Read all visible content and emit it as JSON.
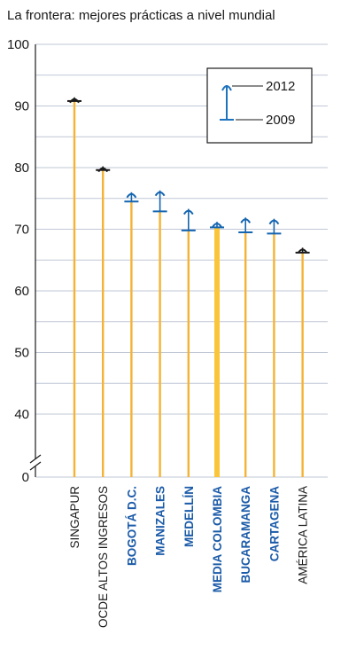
{
  "chart_data": {
    "type": "bar",
    "title": "La frontera: mejores prácticas a nivel mundial",
    "xlabel": "",
    "ylabel": "",
    "ylim": [
      0,
      100
    ],
    "axis_break": "between 0 and 40",
    "y_ticks": [
      "100",
      "90",
      "80",
      "70",
      "60",
      "50",
      "40",
      "0"
    ],
    "y_tick_values": [
      100,
      90,
      80,
      70,
      60,
      50,
      40,
      0
    ],
    "grid": true,
    "legend": {
      "placement": "top-right",
      "entries": [
        "2012",
        "2009"
      ]
    },
    "categories": [
      {
        "label": "SINGAPUR",
        "v2009": 90.8,
        "v2012": 91.4,
        "highlight": "none"
      },
      {
        "label": "OCDE ALTOS INGRESOS",
        "v2009": 79.6,
        "v2012": 80.2,
        "highlight": "none"
      },
      {
        "label": "BOGOTÁ D.C.",
        "v2009": 74.5,
        "v2012": 76.0,
        "highlight": "city"
      },
      {
        "label": "MANIZALES",
        "v2009": 72.9,
        "v2012": 76.3,
        "highlight": "city"
      },
      {
        "label": "MEDELLÍN",
        "v2009": 69.8,
        "v2012": 73.3,
        "highlight": "city"
      },
      {
        "label": "MEDIA COLOMBIA",
        "v2009": 70.3,
        "v2012": 71.2,
        "highlight": "average"
      },
      {
        "label": "BUCARAMANGA",
        "v2009": 69.5,
        "v2012": 71.9,
        "highlight": "city"
      },
      {
        "label": "CARTAGENA",
        "v2009": 69.3,
        "v2012": 71.7,
        "highlight": "city"
      },
      {
        "label": "AMÉRICA LATINA",
        "v2009": 66.2,
        "v2012": 67.0,
        "highlight": "none"
      }
    ],
    "colors": {
      "bar": "#f5b335",
      "bar_highlight": "#fbc53a",
      "marker_2012": "#1565b0",
      "marker_2009": "#1565b0",
      "marker_plain": "#1a1a1a",
      "city_label": "#1a5aa8",
      "plain_label": "#1a1a1a",
      "legend_marker": "#1e73be",
      "grid": "#bfc7d6"
    }
  }
}
